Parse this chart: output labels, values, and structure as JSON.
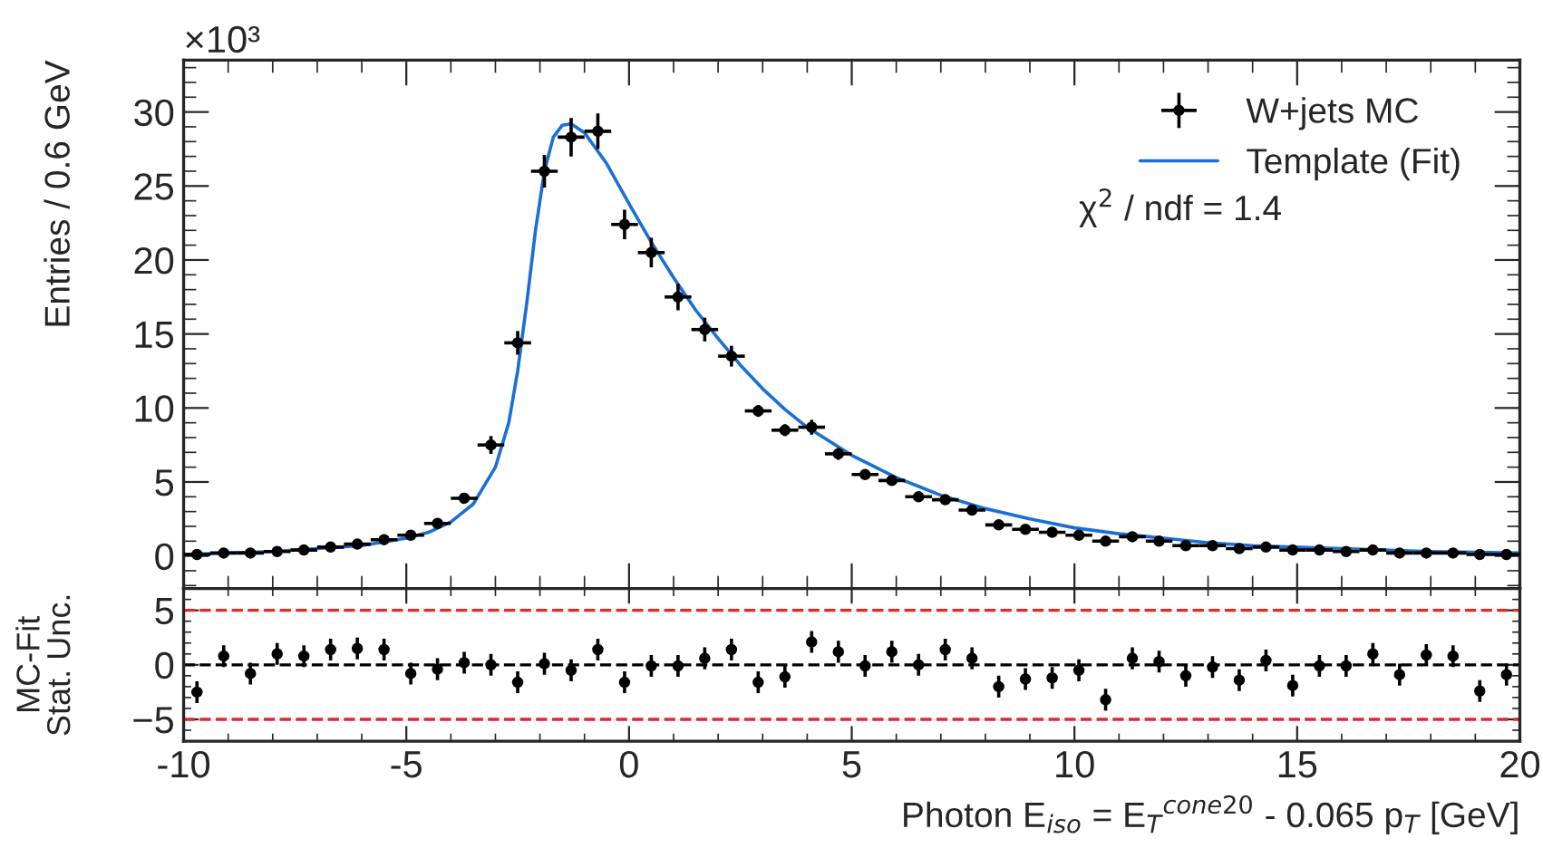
{
  "chart_data": [
    {
      "type": "scatter",
      "ylabel": "Entries / 0.6 GeV",
      "annotations": [
        "×10³",
        "χ$^{2}$ / ndf = 1.4"
      ],
      "xlim": [
        -10,
        20
      ],
      "xticks": [
        -10,
        -5,
        0,
        5,
        10,
        15,
        20
      ],
      "ylim": [
        -2.2,
        33.5
      ],
      "yticks": [
        0,
        5,
        10,
        15,
        20,
        25,
        30
      ],
      "tick_labels": "y",
      "legend": "top right",
      "marker": "circle",
      "series": [
        {
          "name": "W+jets MC",
          "color": "#000000",
          "x": [
            -9.7,
            -9.1,
            -8.5,
            -7.9,
            -7.3,
            -6.7,
            -6.1,
            -5.5,
            -4.9,
            -4.3,
            -3.7,
            -3.1,
            -2.5,
            -1.9,
            -1.3,
            -0.7,
            -0.1,
            0.5,
            1.1,
            1.7,
            2.3,
            2.9,
            3.5,
            4.1,
            4.7,
            5.3,
            5.9,
            6.5,
            7.1,
            7.7,
            8.3,
            8.9,
            9.5,
            10.1,
            10.7,
            11.3,
            11.9,
            12.5,
            13.1,
            13.7,
            14.3,
            14.9,
            15.5,
            16.1,
            16.7,
            17.3,
            17.9,
            18.5,
            19.1,
            19.7
          ],
          "values": [
            0.1,
            0.2,
            0.2,
            0.3,
            0.4,
            0.6,
            0.8,
            1.1,
            1.4,
            2.2,
            3.9,
            7.5,
            14.4,
            26.0,
            28.3,
            28.7,
            22.4,
            20.5,
            17.5,
            15.3,
            13.5,
            9.8,
            8.5,
            8.7,
            6.9,
            5.5,
            5.1,
            4.0,
            3.8,
            3.1,
            2.1,
            1.8,
            1.6,
            1.4,
            1.0,
            1.3,
            1.0,
            0.7,
            0.7,
            0.5,
            0.6,
            0.4,
            0.4,
            0.3,
            0.4,
            0.2,
            0.2,
            0.2,
            0.1,
            0.1
          ],
          "errors": [
            0.1,
            0.1,
            0.1,
            0.1,
            0.1,
            0.1,
            0.1,
            0.2,
            0.2,
            0.2,
            0.3,
            0.6,
            0.8,
            1.1,
            1.3,
            1.2,
            1.0,
            1.0,
            0.9,
            0.8,
            0.7,
            0.4,
            0.4,
            0.5,
            0.4,
            0.3,
            0.3,
            0.3,
            0.3,
            0.3,
            0.2,
            0.2,
            0.2,
            0.2,
            0.2,
            0.2,
            0.1,
            0.1,
            0.1,
            0.1,
            0.1,
            0.1,
            0.1,
            0.1,
            0.1,
            0.1,
            0.1,
            0.1,
            0.1,
            0.1
          ],
          "xerrors": [
            0.3,
            0.3,
            0.3,
            0.3,
            0.3,
            0.3,
            0.3,
            0.3,
            0.3,
            0.3,
            0.3,
            0.3,
            0.3,
            0.3,
            0.3,
            0.3,
            0.3,
            0.3,
            0.3,
            0.3,
            0.3,
            0.3,
            0.3,
            0.3,
            0.3,
            0.3,
            0.3,
            0.3,
            0.3,
            0.3,
            0.3,
            0.3,
            0.3,
            0.3,
            0.3,
            0.3,
            0.3,
            0.3,
            0.3,
            0.3,
            0.3,
            0.3,
            0.3,
            0.3,
            0.3,
            0.3,
            0.3,
            0.3,
            0.3,
            0.3
          ]
        },
        {
          "name": "Template (Fit)",
          "color": "#1a6fd6",
          "type": "line",
          "marker": "none",
          "line_style": "solid",
          "x": [
            -10,
            -8,
            -6,
            -5,
            -4.5,
            -4,
            -3.5,
            -3,
            -2.7,
            -2.5,
            -2.3,
            -2.1,
            -1.9,
            -1.7,
            -1.5,
            -1.3,
            -1.0,
            -0.5,
            0,
            0.5,
            1,
            1.5,
            2,
            2.5,
            3,
            3.5,
            4,
            5,
            6,
            7,
            8,
            9,
            10,
            11,
            12,
            13,
            14,
            16,
            18,
            20
          ],
          "values": [
            0.1,
            0.3,
            0.7,
            1.2,
            1.6,
            2.3,
            3.5,
            6.0,
            9.0,
            12.5,
            17.0,
            22.0,
            26.0,
            28.3,
            29.1,
            29.2,
            28.6,
            26.5,
            23.8,
            21.2,
            18.8,
            16.6,
            14.7,
            12.9,
            11.3,
            9.9,
            8.7,
            6.8,
            5.3,
            4.1,
            3.2,
            2.5,
            1.9,
            1.5,
            1.2,
            0.9,
            0.7,
            0.5,
            0.3,
            0.2
          ]
        }
      ]
    },
    {
      "type": "scatter",
      "xlabel": "Photon E$_{iso}$ = E$_{T}$$^{cone20}$ - 0.065 p$_{T}$ [GeV]",
      "ylabel": "MC-Fit\nStat. Unc.",
      "xlim": [
        -10,
        20
      ],
      "xticks": [
        -10,
        -5,
        0,
        5,
        10,
        15,
        20
      ],
      "ylim": [
        -7,
        7
      ],
      "yticks": [
        {
          "value": -5,
          "label": "−5"
        },
        0,
        5
      ],
      "marker": "circle",
      "ref_lines": [
        {
          "axis": "y",
          "value": 5,
          "color": "#e8262b",
          "line_style": "dashed"
        },
        {
          "axis": "y",
          "value": 0,
          "color": "#000000",
          "line_style": "dashed"
        },
        {
          "axis": "y",
          "value": -5,
          "color": "#e8262b",
          "line_style": "dashed"
        }
      ],
      "series": [
        {
          "color": "#000000",
          "x": [
            -9.7,
            -9.1,
            -8.5,
            -7.9,
            -7.3,
            -6.7,
            -6.1,
            -5.5,
            -4.9,
            -4.3,
            -3.7,
            -3.1,
            -2.5,
            -1.9,
            -1.3,
            -0.7,
            -0.1,
            0.5,
            1.1,
            1.7,
            2.3,
            2.9,
            3.5,
            4.1,
            4.7,
            5.3,
            5.9,
            6.5,
            7.1,
            7.7,
            8.3,
            8.9,
            9.5,
            10.1,
            10.7,
            11.3,
            11.9,
            12.5,
            13.1,
            13.7,
            14.3,
            14.9,
            15.5,
            16.1,
            16.7,
            17.3,
            17.9,
            18.5,
            19.1,
            19.7
          ],
          "values": [
            -2.5,
            0.8,
            -0.8,
            1.0,
            0.8,
            1.4,
            1.5,
            1.4,
            -0.8,
            -0.4,
            0.2,
            0,
            -1.6,
            0.1,
            -0.5,
            1.4,
            -1.6,
            -0.1,
            -0.1,
            0.6,
            1.4,
            -1.6,
            -1.1,
            2.1,
            1.2,
            -0.1,
            1.2,
            0,
            1.4,
            0.6,
            -2.0,
            -1.3,
            -1.2,
            -0.5,
            -3.2,
            0.6,
            0.3,
            -1.0,
            -0.2,
            -1.4,
            0.4,
            -1.9,
            -0.1,
            -0.1,
            1.0,
            -0.9,
            0.9,
            0.8,
            -2.4,
            -0.9
          ],
          "errors": [
            1,
            1,
            1,
            1,
            1,
            1,
            1,
            1,
            1,
            1,
            1,
            1,
            1,
            1,
            1,
            1,
            1,
            1,
            1,
            1,
            1,
            1,
            1,
            1,
            1,
            1,
            1,
            1,
            1,
            1,
            1,
            1,
            1,
            1,
            1,
            1,
            1,
            1,
            1,
            1,
            1,
            1,
            1,
            1,
            1,
            1,
            1,
            1,
            1,
            1
          ]
        }
      ]
    }
  ]
}
